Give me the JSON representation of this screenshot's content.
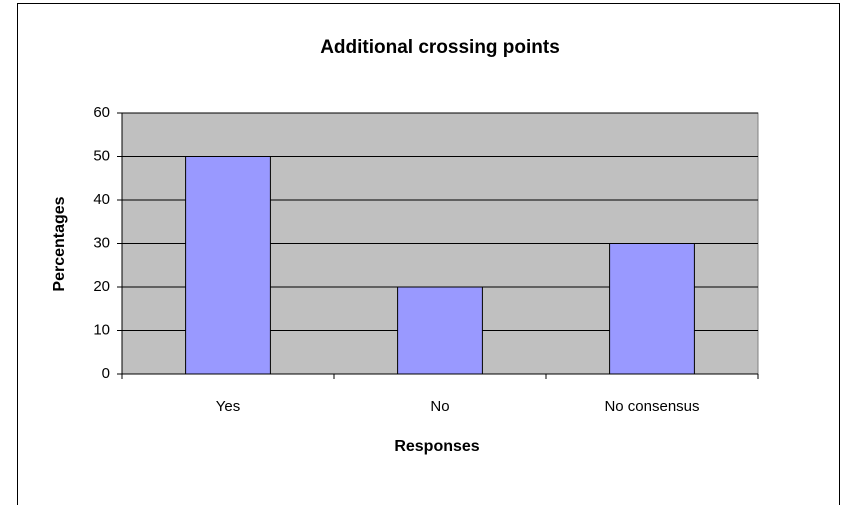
{
  "chart_data": {
    "type": "bar",
    "title": "Additional crossing points",
    "x_label": "Responses",
    "y_label": "Percentages",
    "categories": [
      "Yes",
      "No",
      "No consensus"
    ],
    "values": [
      50,
      20,
      30
    ],
    "color": "#9999ff",
    "ylim": [
      0,
      60
    ],
    "yticks": [
      0,
      10,
      20,
      30,
      40,
      50,
      60
    ],
    "grid": true
  }
}
